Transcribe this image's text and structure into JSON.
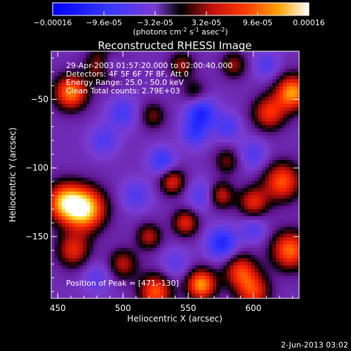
{
  "colorbar": {
    "ticks": [
      "-0.00016",
      "-9.6e-05",
      "-3.2e-05",
      "3.2e-05",
      "9.6e-05",
      "0.00016"
    ],
    "unit_pre": "(photons cm",
    "unit_sup1": "-2",
    "unit_mid": " s",
    "unit_sup2": "-1",
    "unit_mid2": " asec",
    "unit_sup3": "-2",
    "unit_post": ")"
  },
  "chart_data": {
    "type": "heatmap",
    "title": "Reconstructed RHESSI Image",
    "xlabel": "Heliocentric X (arcsec)",
    "ylabel": "Heliocentric Y (arcsec)",
    "xlim": [
      445,
      635
    ],
    "ylim": [
      -195,
      -15
    ],
    "xticks": [
      "450",
      "500",
      "550",
      "600"
    ],
    "yticks": [
      "-50",
      "-100",
      "-150"
    ],
    "annotations": [
      "29-Apr-2003 01:57:20.000 to 02:00:40.000",
      "Detectors: 4F 5F 6F 7F 8F, Att 0",
      "Energy Range: 25.0 - 50.0 keV",
      "Clean     Total counts: 2.79E+03"
    ],
    "peak_label": "Position of Peak = [471,-130]",
    "peak": [
      471,
      -130
    ],
    "value_range": [
      -0.00016,
      0.00016
    ],
    "blobs": [
      {
        "x": 471,
        "y": -130,
        "v": 1.0,
        "s": 11
      },
      {
        "x": 455,
        "y": -125,
        "v": 0.8,
        "s": 10
      },
      {
        "x": 462,
        "y": -160,
        "v": 0.55,
        "s": 9
      },
      {
        "x": 460,
        "y": -45,
        "v": 0.8,
        "s": 9
      },
      {
        "x": 485,
        "y": -25,
        "v": 0.55,
        "s": 9
      },
      {
        "x": 630,
        "y": -45,
        "v": 0.85,
        "s": 9
      },
      {
        "x": 612,
        "y": -60,
        "v": 0.6,
        "s": 9
      },
      {
        "x": 622,
        "y": -110,
        "v": 0.7,
        "s": 10
      },
      {
        "x": 628,
        "y": -160,
        "v": 0.75,
        "s": 10
      },
      {
        "x": 600,
        "y": -125,
        "v": 0.55,
        "s": 8
      },
      {
        "x": 575,
        "y": -120,
        "v": 0.5,
        "s": 7
      },
      {
        "x": 590,
        "y": -175,
        "v": 0.6,
        "s": 9
      },
      {
        "x": 560,
        "y": -185,
        "v": 0.85,
        "s": 8
      },
      {
        "x": 525,
        "y": -190,
        "v": 0.7,
        "s": 9
      },
      {
        "x": 600,
        "y": -190,
        "v": 0.6,
        "s": 9
      },
      {
        "x": 500,
        "y": -170,
        "v": 0.45,
        "s": 8
      },
      {
        "x": 520,
        "y": -150,
        "v": 0.45,
        "s": 7
      },
      {
        "x": 538,
        "y": -110,
        "v": 0.55,
        "s": 7
      },
      {
        "x": 548,
        "y": -140,
        "v": 0.55,
        "s": 7
      },
      {
        "x": 523,
        "y": -62,
        "v": 0.35,
        "s": 7
      },
      {
        "x": 555,
        "y": -45,
        "v": 0.3,
        "s": 7
      },
      {
        "x": 545,
        "y": -25,
        "v": 0.4,
        "s": 7
      },
      {
        "x": 585,
        "y": -25,
        "v": 0.4,
        "s": 7
      },
      {
        "x": 580,
        "y": -95,
        "v": 0.35,
        "s": 7
      },
      {
        "x": 560,
        "y": -60,
        "v": -0.6,
        "s": 8
      },
      {
        "x": 576,
        "y": -155,
        "v": -0.6,
        "s": 8
      },
      {
        "x": 490,
        "y": -25,
        "v": -0.45,
        "s": 6
      },
      {
        "x": 530,
        "y": -95,
        "v": -0.45,
        "s": 7
      },
      {
        "x": 555,
        "y": -75,
        "v": -0.4,
        "s": 7
      },
      {
        "x": 580,
        "y": -70,
        "v": -0.35,
        "s": 7
      },
      {
        "x": 500,
        "y": -60,
        "v": -0.35,
        "s": 8
      },
      {
        "x": 600,
        "y": -90,
        "v": -0.3,
        "s": 8
      },
      {
        "x": 510,
        "y": -120,
        "v": -0.3,
        "s": 8
      },
      {
        "x": 560,
        "y": -120,
        "v": -0.3,
        "s": 8
      },
      {
        "x": 600,
        "y": -145,
        "v": -0.3,
        "s": 7
      },
      {
        "x": 485,
        "y": -80,
        "v": -0.3,
        "s": 8
      },
      {
        "x": 540,
        "y": -170,
        "v": -0.25,
        "s": 8
      },
      {
        "x": 480,
        "y": -180,
        "v": -0.25,
        "s": 8
      },
      {
        "x": 610,
        "y": -25,
        "v": -0.3,
        "s": 7
      }
    ]
  },
  "footer": {
    "date": "2-Jun-2013 03:02"
  }
}
